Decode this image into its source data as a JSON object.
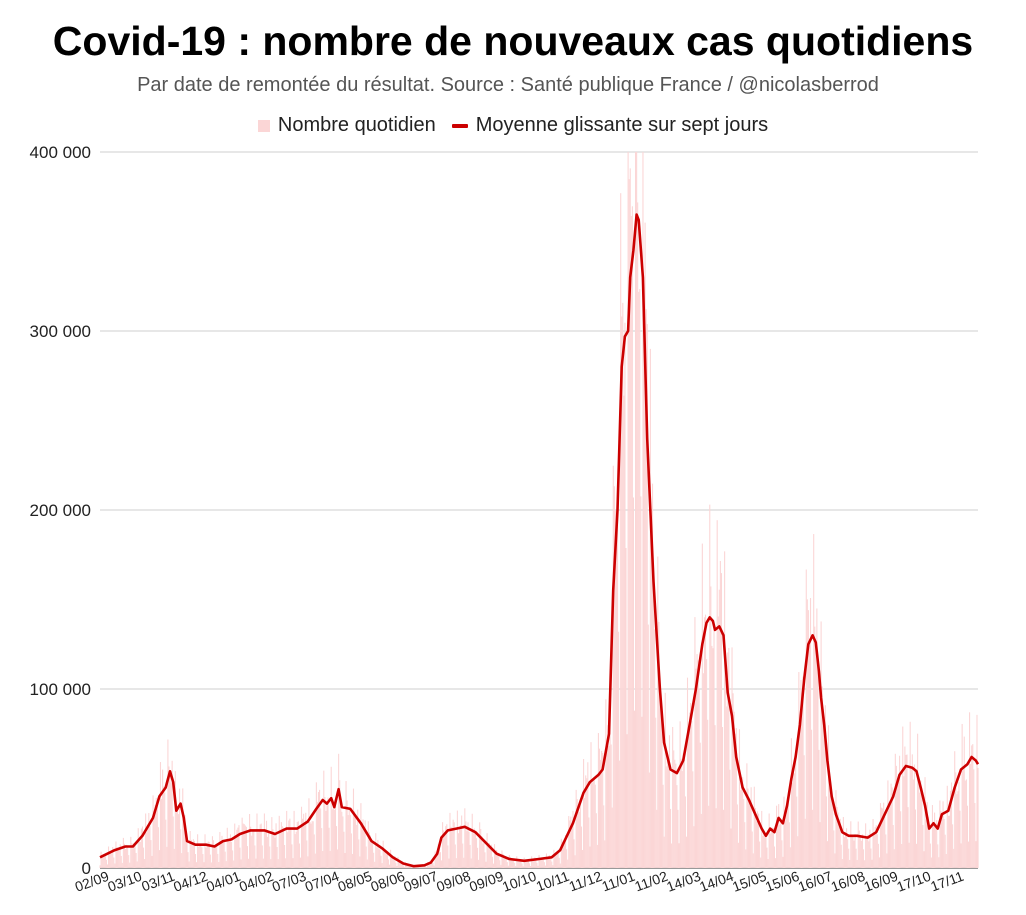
{
  "chart_data": {
    "type": "line",
    "title": "Covid-19 : nombre de nouveaux cas quotidiens",
    "subtitle": "Par date de remontée du résultat. Source : Santé publique France / @nicolasberrod",
    "legend": {
      "placement": "top-center"
    },
    "series": [
      {
        "name": "Nombre quotidien",
        "kind": "bar",
        "color": "#fbd6d6"
      },
      {
        "name": "Moyenne glissante sur sept jours",
        "kind": "line",
        "color": "#cc0000"
      }
    ],
    "y_ticks": [
      "0",
      "100 000",
      "200 000",
      "300 000",
      "400 000"
    ],
    "ylim": [
      0,
      400000
    ],
    "grid": true,
    "x_labels": [
      "02/09",
      "03/10",
      "03/11",
      "04/12",
      "04/01",
      "04/02",
      "07/03",
      "07/04",
      "08/05",
      "08/06",
      "09/07",
      "09/08",
      "09/09",
      "10/10",
      "10/11",
      "11/12",
      "11/01",
      "11/02",
      "14/03",
      "14/04",
      "15/05",
      "15/06",
      "16/07",
      "16/08",
      "16/09",
      "17/10",
      "17/11"
    ],
    "x_label_positions": [
      0,
      31,
      62,
      93,
      124,
      155,
      186,
      217,
      248,
      279,
      310,
      341,
      372,
      403,
      434,
      465,
      496,
      527,
      558,
      589,
      620,
      651,
      682,
      713,
      744,
      775,
      806
    ],
    "avg_points": [
      [
        0,
        6000
      ],
      [
        14,
        10000
      ],
      [
        24,
        12000
      ],
      [
        31,
        12000
      ],
      [
        40,
        18000
      ],
      [
        50,
        28000
      ],
      [
        56,
        40000
      ],
      [
        62,
        45000
      ],
      [
        66,
        54000
      ],
      [
        69,
        48000
      ],
      [
        72,
        32000
      ],
      [
        76,
        36000
      ],
      [
        79,
        28000
      ],
      [
        82,
        15000
      ],
      [
        90,
        13000
      ],
      [
        100,
        13000
      ],
      [
        108,
        12000
      ],
      [
        116,
        15000
      ],
      [
        124,
        16000
      ],
      [
        132,
        19000
      ],
      [
        142,
        21000
      ],
      [
        155,
        21000
      ],
      [
        165,
        19000
      ],
      [
        176,
        22000
      ],
      [
        186,
        22000
      ],
      [
        196,
        26000
      ],
      [
        204,
        33000
      ],
      [
        210,
        38000
      ],
      [
        214,
        36000
      ],
      [
        218,
        39000
      ],
      [
        221,
        34000
      ],
      [
        225,
        44000
      ],
      [
        228,
        34000
      ],
      [
        236,
        33000
      ],
      [
        246,
        25000
      ],
      [
        256,
        15000
      ],
      [
        266,
        11000
      ],
      [
        276,
        6000
      ],
      [
        286,
        2500
      ],
      [
        296,
        1000
      ],
      [
        306,
        1500
      ],
      [
        312,
        3000
      ],
      [
        318,
        8000
      ],
      [
        322,
        17000
      ],
      [
        328,
        21000
      ],
      [
        336,
        22000
      ],
      [
        344,
        23000
      ],
      [
        354,
        20000
      ],
      [
        364,
        14000
      ],
      [
        374,
        8000
      ],
      [
        386,
        5000
      ],
      [
        400,
        4000
      ],
      [
        414,
        5000
      ],
      [
        426,
        6000
      ],
      [
        434,
        10000
      ],
      [
        446,
        25000
      ],
      [
        456,
        42000
      ],
      [
        462,
        48000
      ],
      [
        470,
        52000
      ],
      [
        474,
        55000
      ],
      [
        480,
        75000
      ],
      [
        484,
        155000
      ],
      [
        488,
        200000
      ],
      [
        492,
        280000
      ],
      [
        495,
        297000
      ],
      [
        498,
        300000
      ],
      [
        500,
        330000
      ],
      [
        503,
        345000
      ],
      [
        506,
        365000
      ],
      [
        508,
        362000
      ],
      [
        512,
        330000
      ],
      [
        516,
        240000
      ],
      [
        522,
        160000
      ],
      [
        528,
        100000
      ],
      [
        532,
        70000
      ],
      [
        538,
        55000
      ],
      [
        544,
        53000
      ],
      [
        550,
        60000
      ],
      [
        556,
        80000
      ],
      [
        562,
        100000
      ],
      [
        568,
        125000
      ],
      [
        572,
        137000
      ],
      [
        575,
        140000
      ],
      [
        578,
        138000
      ],
      [
        580,
        133000
      ],
      [
        584,
        135000
      ],
      [
        588,
        130000
      ],
      [
        592,
        98000
      ],
      [
        596,
        85000
      ],
      [
        600,
        62000
      ],
      [
        606,
        45000
      ],
      [
        612,
        38000
      ],
      [
        618,
        30000
      ],
      [
        624,
        22000
      ],
      [
        628,
        18000
      ],
      [
        632,
        22000
      ],
      [
        636,
        20000
      ],
      [
        640,
        28000
      ],
      [
        644,
        25000
      ],
      [
        648,
        35000
      ],
      [
        652,
        50000
      ],
      [
        656,
        62000
      ],
      [
        660,
        80000
      ],
      [
        664,
        105000
      ],
      [
        668,
        125000
      ],
      [
        672,
        130000
      ],
      [
        675,
        126000
      ],
      [
        678,
        110000
      ],
      [
        680,
        95000
      ],
      [
        683,
        80000
      ],
      [
        686,
        60000
      ],
      [
        690,
        40000
      ],
      [
        694,
        30000
      ],
      [
        700,
        20000
      ],
      [
        706,
        18000
      ],
      [
        714,
        18000
      ],
      [
        724,
        17000
      ],
      [
        732,
        20000
      ],
      [
        740,
        30000
      ],
      [
        748,
        40000
      ],
      [
        754,
        52000
      ],
      [
        760,
        57000
      ],
      [
        766,
        56000
      ],
      [
        770,
        54000
      ],
      [
        774,
        45000
      ],
      [
        778,
        35000
      ],
      [
        782,
        22000
      ],
      [
        786,
        25000
      ],
      [
        790,
        22000
      ],
      [
        794,
        30000
      ],
      [
        800,
        32000
      ],
      [
        806,
        45000
      ],
      [
        812,
        55000
      ],
      [
        818,
        58000
      ],
      [
        822,
        62000
      ],
      [
        826,
        60000
      ],
      [
        828,
        58000
      ]
    ]
  }
}
